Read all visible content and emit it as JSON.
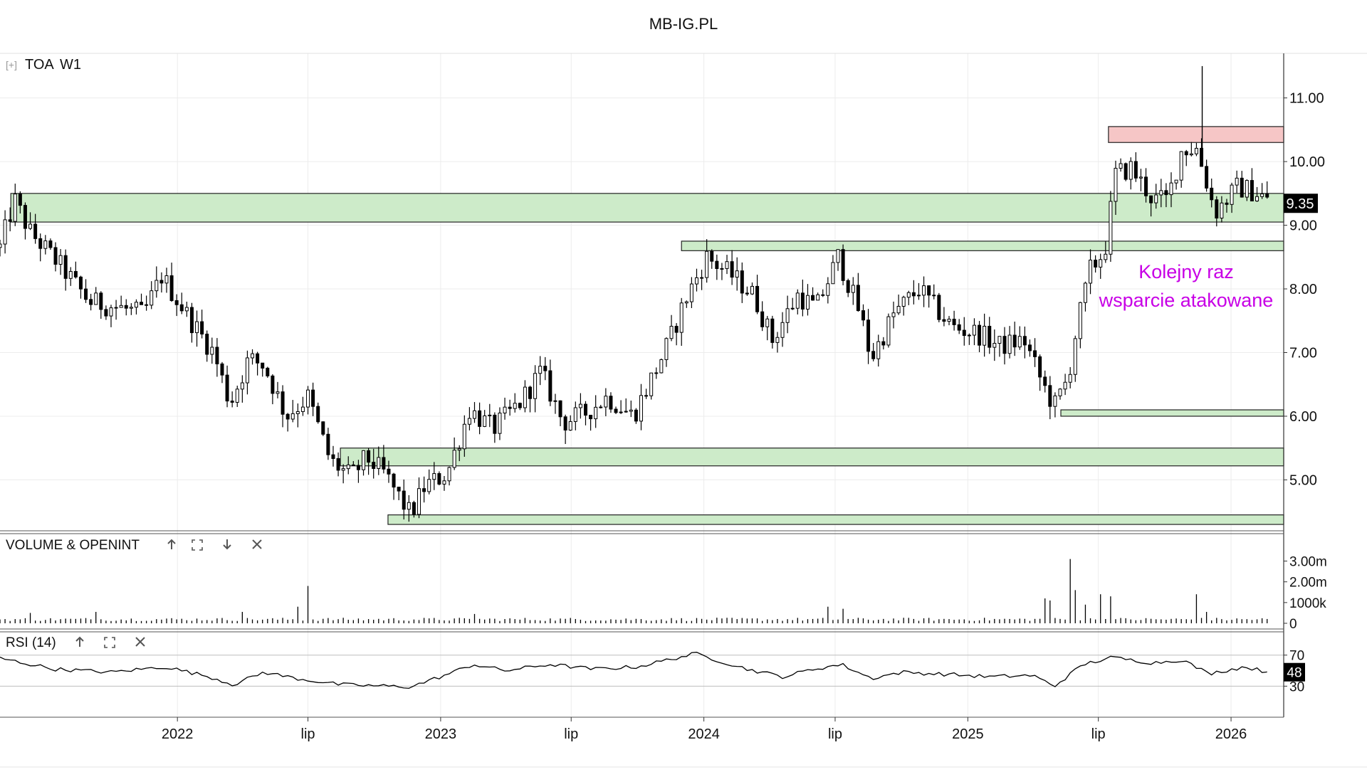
{
  "page": {
    "title": "MB-IG.PL"
  },
  "panels": {
    "price": {
      "expand_icon": "[+]",
      "symbol": "TOA",
      "timeframe": "W1"
    },
    "volume": {
      "title": "VOLUME & OPENINT",
      "buttons": [
        "arrow-up-icon",
        "expand-icon",
        "arrow-down-icon",
        "close-icon"
      ]
    },
    "rsi": {
      "title": "RSI (14)",
      "buttons": [
        "arrow-up-icon",
        "expand-icon",
        "close-icon"
      ]
    }
  },
  "annotation": {
    "line1": "Kolejny raz",
    "line2": "wsparcie atakowane",
    "color": "#c800e6"
  },
  "colors": {
    "zone_green": "#cdebc9",
    "zone_red": "#f6c6c6",
    "candle": "#000000",
    "grid": "#ececec"
  },
  "chart_data": [
    {
      "type": "candlestick",
      "ylim": [
        4.2,
        11.7
      ],
      "y_ticks": [
        "11.00",
        "10.00",
        "9.00",
        "8.00",
        "7.00",
        "6.00",
        "5.00"
      ],
      "last_price_label": "9.35",
      "x_labels": [
        "2022",
        "lip",
        "2023",
        "lip",
        "2024",
        "lip",
        "2025",
        "lip",
        "2026"
      ],
      "x_label_dates": [
        "2022-01-01",
        "2022-07-01",
        "2023-01-01",
        "2023-07-01",
        "2024-01-01",
        "2024-07-01",
        "2025-01-01",
        "2025-07-01",
        "2026-01-01"
      ],
      "x_range": [
        "2021-04-30",
        "2026-03-15"
      ],
      "zones": [
        {
          "color": "green",
          "from": "2021-05-15",
          "to": "2026-03-15",
          "low": 9.05,
          "high": 9.5
        },
        {
          "color": "green",
          "from": "2023-12-01",
          "to": "2026-03-15",
          "low": 8.6,
          "high": 8.75
        },
        {
          "color": "green",
          "from": "2025-05-10",
          "to": "2026-03-15",
          "low": 6.0,
          "high": 6.1
        },
        {
          "color": "green",
          "from": "2022-08-15",
          "to": "2026-03-15",
          "low": 5.22,
          "high": 5.5
        },
        {
          "color": "green",
          "from": "2022-10-20",
          "to": "2026-03-15",
          "low": 4.3,
          "high": 4.45
        },
        {
          "color": "red",
          "from": "2025-07-15",
          "to": "2026-03-15",
          "low": 10.3,
          "high": 10.55
        }
      ],
      "anchors": [
        [
          "2021-04-30",
          8.65
        ],
        [
          "2021-05-20",
          9.4
        ],
        [
          "2021-06-10",
          8.9
        ],
        [
          "2021-07-20",
          8.4
        ],
        [
          "2021-09-01",
          7.8
        ],
        [
          "2021-10-15",
          7.7
        ],
        [
          "2021-11-15",
          7.6
        ],
        [
          "2021-12-10",
          8.2
        ],
        [
          "2022-01-20",
          7.5
        ],
        [
          "2022-02-20",
          7.0
        ],
        [
          "2022-03-15",
          6.2
        ],
        [
          "2022-04-10",
          6.9
        ],
        [
          "2022-05-01",
          6.8
        ],
        [
          "2022-06-01",
          6.0
        ],
        [
          "2022-07-01",
          6.3
        ],
        [
          "2022-08-01",
          5.3
        ],
        [
          "2022-08-30",
          5.05
        ],
        [
          "2022-09-20",
          5.35
        ],
        [
          "2022-10-15",
          5.1
        ],
        [
          "2022-11-20",
          4.45
        ],
        [
          "2022-12-10",
          4.9
        ],
        [
          "2023-01-10",
          5.1
        ],
        [
          "2023-02-10",
          6.1
        ],
        [
          "2023-03-15",
          5.8
        ],
        [
          "2023-04-20",
          6.2
        ],
        [
          "2023-05-20",
          6.7
        ],
        [
          "2023-06-20",
          5.9
        ],
        [
          "2023-07-20",
          6.05
        ],
        [
          "2023-08-20",
          6.3
        ],
        [
          "2023-09-25",
          6.0
        ],
        [
          "2023-10-25",
          6.7
        ],
        [
          "2023-11-15",
          7.2
        ],
        [
          "2023-12-05",
          7.8
        ],
        [
          "2024-01-05",
          8.5
        ],
        [
          "2024-02-10",
          8.2
        ],
        [
          "2024-03-10",
          7.9
        ],
        [
          "2024-04-05",
          7.2
        ],
        [
          "2024-05-10",
          7.9
        ],
        [
          "2024-06-05",
          7.7
        ],
        [
          "2024-07-05",
          8.5
        ],
        [
          "2024-08-05",
          7.6
        ],
        [
          "2024-08-20",
          6.9
        ],
        [
          "2024-09-20",
          7.6
        ],
        [
          "2024-10-25",
          8.0
        ],
        [
          "2024-12-10",
          7.4
        ],
        [
          "2025-01-15",
          7.3
        ],
        [
          "2025-02-15",
          7.1
        ],
        [
          "2025-03-20",
          7.2
        ],
        [
          "2025-04-15",
          6.5
        ],
        [
          "2025-05-01",
          6.15
        ],
        [
          "2025-05-20",
          6.6
        ],
        [
          "2025-06-01",
          7.4
        ],
        [
          "2025-06-20",
          8.3
        ],
        [
          "2025-07-10",
          8.6
        ],
        [
          "2025-07-25",
          9.8
        ],
        [
          "2025-08-15",
          9.9
        ],
        [
          "2025-09-15",
          9.4
        ],
        [
          "2025-10-05",
          9.4
        ],
        [
          "2025-10-25",
          10.2
        ],
        [
          "2025-11-15",
          10.2
        ],
        [
          "2025-12-10",
          9.2
        ],
        [
          "2026-01-10",
          9.6
        ],
        [
          "2026-02-10",
          9.5
        ],
        [
          "2026-02-22",
          9.35
        ]
      ],
      "spikes": [
        {
          "date": "2025-11-22",
          "high": 11.5
        }
      ]
    },
    {
      "type": "bar",
      "name": "VOLUME & OPENINT",
      "ylim": [
        0,
        3.5
      ],
      "y_ticks": [
        "3.00m",
        "2.00m",
        "1000k",
        "0"
      ],
      "y_tick_values": [
        3.0,
        2.0,
        1.0,
        0
      ],
      "baseline_millions": 0.18,
      "spikes_millions": [
        [
          "2021-06-10",
          0.5
        ],
        [
          "2021-09-10",
          0.55
        ],
        [
          "2022-04-01",
          0.55
        ],
        [
          "2022-06-15",
          0.8
        ],
        [
          "2022-07-01",
          1.8
        ],
        [
          "2023-02-20",
          0.45
        ],
        [
          "2024-07-15",
          0.7
        ],
        [
          "2024-06-20",
          0.8
        ],
        [
          "2025-04-20",
          1.2
        ],
        [
          "2025-04-25",
          1.1
        ],
        [
          "2025-05-20",
          3.1
        ],
        [
          "2025-05-30",
          1.6
        ],
        [
          "2025-06-10",
          0.9
        ],
        [
          "2025-07-01",
          1.4
        ],
        [
          "2025-07-15",
          1.3
        ],
        [
          "2025-11-15",
          1.4
        ],
        [
          "2025-11-25",
          0.55
        ]
      ]
    },
    {
      "type": "line",
      "name": "RSI (14)",
      "ylim": [
        -10,
        100
      ],
      "y_ticks": [
        "70",
        "30"
      ],
      "y_tick_values": [
        70,
        30
      ],
      "last_value_label": "48",
      "anchors": [
        [
          "2021-04-30",
          66
        ],
        [
          "2021-06-01",
          60
        ],
        [
          "2021-07-15",
          52
        ],
        [
          "2021-10-01",
          48
        ],
        [
          "2021-12-15",
          55
        ],
        [
          "2022-02-15",
          42
        ],
        [
          "2022-03-20",
          32
        ],
        [
          "2022-05-01",
          48
        ],
        [
          "2022-06-15",
          40
        ],
        [
          "2022-08-15",
          32
        ],
        [
          "2022-11-20",
          29
        ],
        [
          "2023-01-10",
          45
        ],
        [
          "2023-02-15",
          58
        ],
        [
          "2023-04-01",
          50
        ],
        [
          "2023-06-01",
          58
        ],
        [
          "2023-08-01",
          52
        ],
        [
          "2023-10-01",
          55
        ],
        [
          "2023-12-20",
          72
        ],
        [
          "2024-03-01",
          52
        ],
        [
          "2024-04-20",
          42
        ],
        [
          "2024-06-01",
          52
        ],
        [
          "2024-07-10",
          58
        ],
        [
          "2024-08-20",
          40
        ],
        [
          "2024-10-01",
          48
        ],
        [
          "2024-12-10",
          45
        ],
        [
          "2025-02-01",
          42
        ],
        [
          "2025-04-01",
          44
        ],
        [
          "2025-05-01",
          30
        ],
        [
          "2025-06-10",
          58
        ],
        [
          "2025-07-20",
          67
        ],
        [
          "2025-09-15",
          60
        ],
        [
          "2025-10-25",
          64
        ],
        [
          "2025-12-01",
          46
        ],
        [
          "2026-01-20",
          55
        ],
        [
          "2026-02-22",
          48
        ]
      ]
    }
  ]
}
